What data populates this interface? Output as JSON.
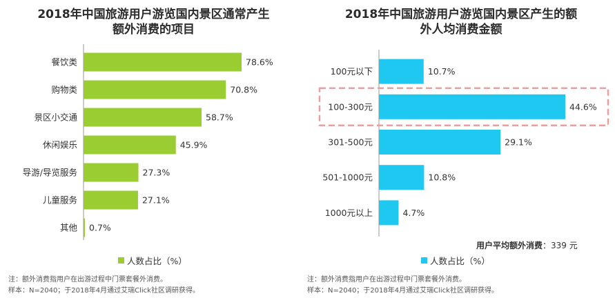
{
  "chart_data": [
    {
      "type": "bar",
      "orientation": "horizontal",
      "title": "2018年中国旅游用户游览国内景区通常产生额外消费的项目",
      "title_lines": [
        "2018年中国旅游用户游览国内景区通常产生",
        "额外消费的项目"
      ],
      "categories": [
        "餐饮类",
        "购物类",
        "景区小交通",
        "休闲娱乐",
        "导游/导览服务",
        "儿童服务",
        "其他"
      ],
      "series": [
        {
          "name": "人数占比（%）",
          "values": [
            78.6,
            70.8,
            58.7,
            45.9,
            27.3,
            27.1,
            0.7
          ],
          "color": "#9acd32"
        }
      ],
      "value_labels": [
        "78.6%",
        "70.8%",
        "58.7%",
        "45.9%",
        "27.3%",
        "27.1%",
        "0.7%"
      ],
      "legend": {
        "label": "人数占比（%）",
        "position": "bottom"
      },
      "notes": [
        "注：额外消费指用户在出游过程中门票套餐外消费。",
        "样本：N=2040；于2018年4月通过艾瑞Click社区调研获得。"
      ]
    },
    {
      "type": "bar",
      "orientation": "horizontal",
      "title": "2018年中国旅游用户游览国内景区产生的额外人均消费金额",
      "title_lines": [
        "2018年中国旅游用户游览国内景区产生的额",
        "外人均消费金额"
      ],
      "categories": [
        "100元以下",
        "100-300元",
        "301-500元",
        "501-1000元",
        "1000元以上"
      ],
      "series": [
        {
          "name": "人数占比（%）",
          "values": [
            10.7,
            44.6,
            29.1,
            10.8,
            4.7
          ],
          "color": "#1fc8f0"
        }
      ],
      "value_labels": [
        "10.7%",
        "44.6%",
        "29.1%",
        "10.8%",
        "4.7%"
      ],
      "highlight_category": "100-300元",
      "highlight_color": "#e8a0a0",
      "annotation": {
        "label": "用户平均额外消费",
        "value": "：339 元"
      },
      "legend": {
        "label": "人数占比（%）",
        "position": "bottom"
      },
      "notes": [
        "注：额外消费指用户在出游过程中门票套餐外消费。",
        "样本：N=2040；于2018年4月通过艾瑞Click社区调研获得。"
      ]
    }
  ]
}
